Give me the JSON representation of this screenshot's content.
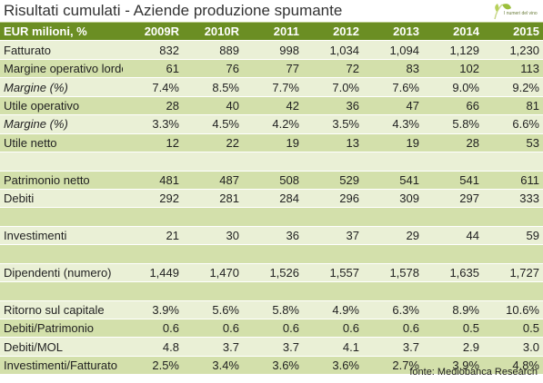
{
  "title": "Risultati cumulati - Aziende produzione spumante",
  "logo": {
    "caption": "I numeri del vino",
    "colors": {
      "leaf": "#9bbf3b",
      "stem": "#c9d88a"
    }
  },
  "table": {
    "header": [
      "EUR milioni, %",
      "2009R",
      "2010R",
      "2011",
      "2012",
      "2013",
      "2014",
      "2015"
    ],
    "rows": [
      {
        "label": "Fatturato",
        "values": [
          "832",
          "889",
          "998",
          "1,034",
          "1,094",
          "1,129",
          "1,230"
        ],
        "italic": false
      },
      {
        "label": "Margine operativo lordo",
        "values": [
          "61",
          "76",
          "77",
          "72",
          "83",
          "102",
          "113"
        ],
        "italic": false
      },
      {
        "label": "Margine (%)",
        "values": [
          "7.4%",
          "8.5%",
          "7.7%",
          "7.0%",
          "7.6%",
          "9.0%",
          "9.2%"
        ],
        "italic": true
      },
      {
        "label": "Utile operativo",
        "values": [
          "28",
          "40",
          "42",
          "36",
          "47",
          "66",
          "81"
        ],
        "italic": false
      },
      {
        "label": "Margine (%)",
        "values": [
          "3.3%",
          "4.5%",
          "4.2%",
          "3.5%",
          "4.3%",
          "5.8%",
          "6.6%"
        ],
        "italic": true
      },
      {
        "label": "Utile netto",
        "values": [
          "12",
          "22",
          "19",
          "13",
          "19",
          "28",
          "53"
        ],
        "italic": false
      },
      {
        "label": "",
        "values": [
          "",
          "",
          "",
          "",
          "",
          "",
          ""
        ],
        "italic": false
      },
      {
        "label": "Patrimonio netto",
        "values": [
          "481",
          "487",
          "508",
          "529",
          "541",
          "541",
          "611"
        ],
        "italic": false
      },
      {
        "label": "Debiti",
        "values": [
          "292",
          "281",
          "284",
          "296",
          "309",
          "297",
          "333"
        ],
        "italic": false
      },
      {
        "label": "",
        "values": [
          "",
          "",
          "",
          "",
          "",
          "",
          ""
        ],
        "italic": false
      },
      {
        "label": "Investimenti",
        "values": [
          "21",
          "30",
          "36",
          "37",
          "29",
          "44",
          "59"
        ],
        "italic": false
      },
      {
        "label": "",
        "values": [
          "",
          "",
          "",
          "",
          "",
          "",
          ""
        ],
        "italic": false
      },
      {
        "label": "Dipendenti (numero)",
        "values": [
          "1,449",
          "1,470",
          "1,526",
          "1,557",
          "1,578",
          "1,635",
          "1,727"
        ],
        "italic": false
      },
      {
        "label": "",
        "values": [
          "",
          "",
          "",
          "",
          "",
          "",
          ""
        ],
        "italic": false
      },
      {
        "label": "Ritorno sul capitale",
        "values": [
          "3.9%",
          "5.6%",
          "5.8%",
          "4.9%",
          "6.3%",
          "8.9%",
          "10.6%"
        ],
        "italic": false
      },
      {
        "label": "Debiti/Patrimonio",
        "values": [
          "0.6",
          "0.6",
          "0.6",
          "0.6",
          "0.6",
          "0.5",
          "0.5"
        ],
        "italic": false
      },
      {
        "label": "Debiti/MOL",
        "values": [
          "4.8",
          "3.7",
          "3.7",
          "4.1",
          "3.7",
          "2.9",
          "3.0"
        ],
        "italic": false
      },
      {
        "label": "Investimenti/Fatturato",
        "values": [
          "2.5%",
          "3.4%",
          "3.6%",
          "3.6%",
          "2.7%",
          "3.9%",
          "4.8%"
        ],
        "italic": false
      }
    ]
  },
  "footer": {
    "source": "fonte: Mediobanca Research"
  },
  "colors": {
    "header_bg": "#6b8e23",
    "row_light": "#eaf0d6",
    "row_dark": "#d3e0ab"
  }
}
